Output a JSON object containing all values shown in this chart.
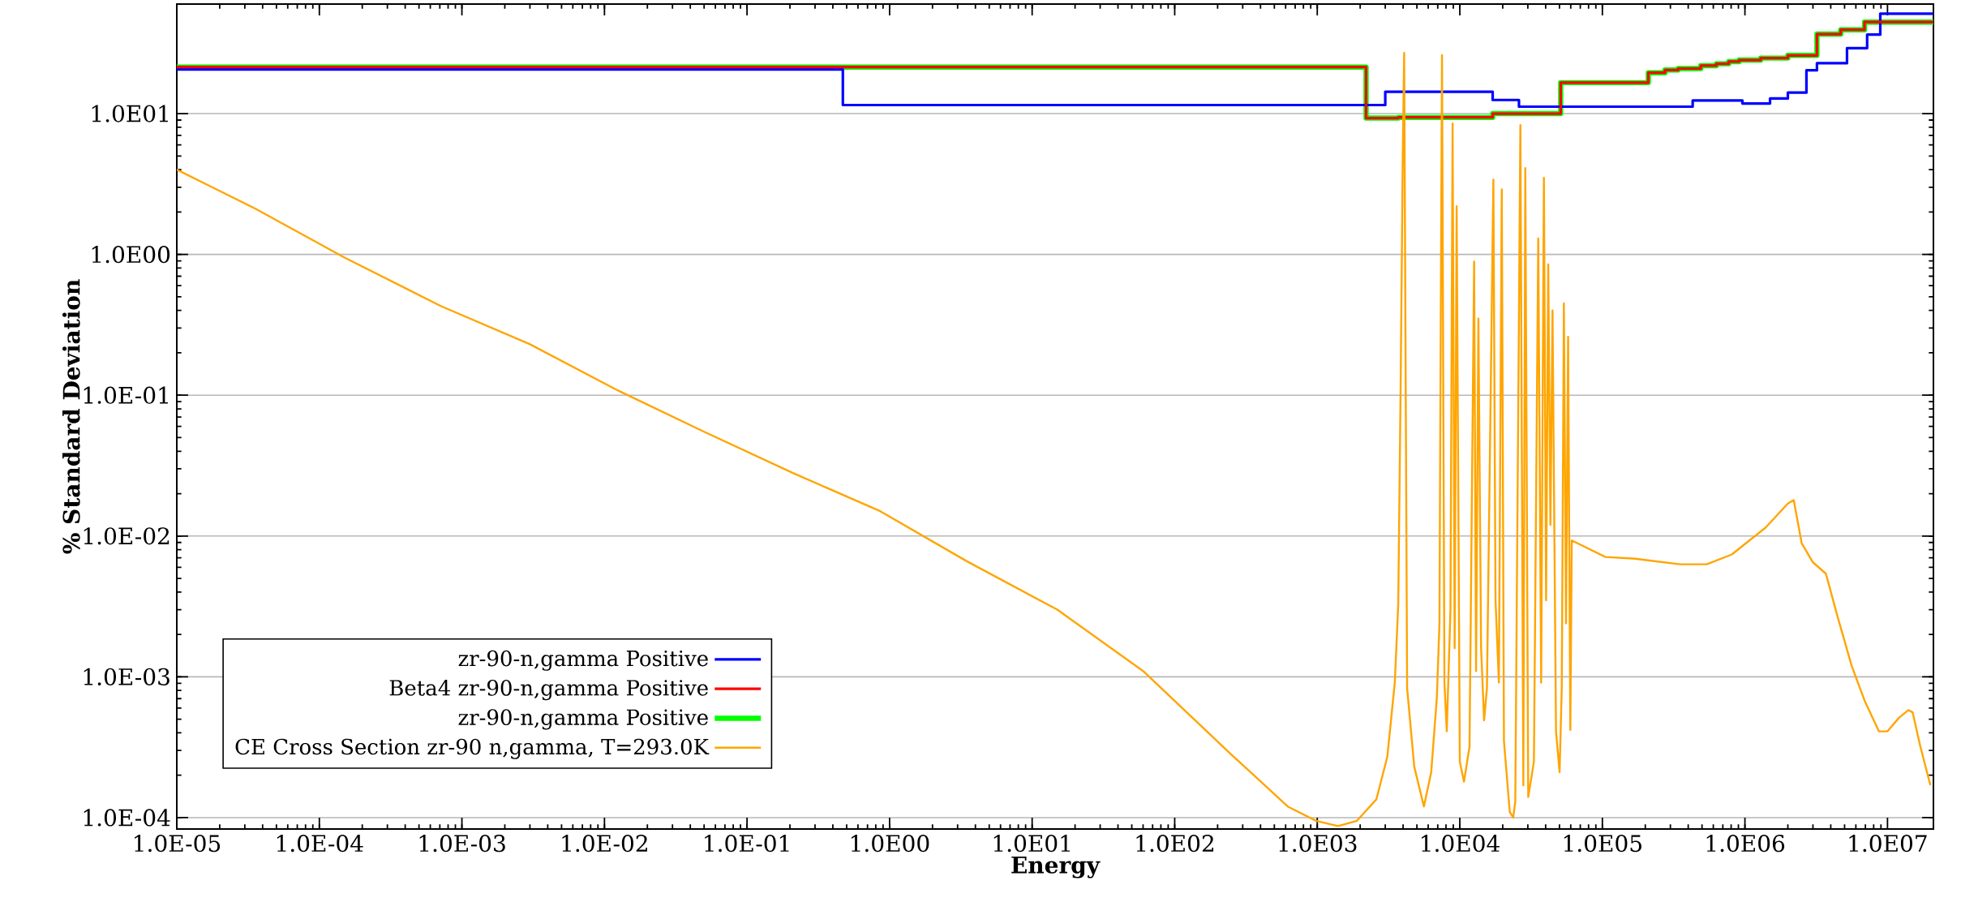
{
  "chart_data": {
    "type": "step",
    "xlabel": "Energy",
    "ylabel": "% Standard Deviation",
    "log": "xy",
    "grid": "y",
    "legend": "bottom left",
    "xlim": [
      1e-05,
      21000000.0
    ],
    "ylim": [
      8.3e-05,
      60
    ],
    "xticks": [
      {
        "value": 1e-05,
        "label": "1.0E-05"
      },
      {
        "value": 0.0001,
        "label": "1.0E-04"
      },
      {
        "value": 0.001,
        "label": "1.0E-03"
      },
      {
        "value": 0.01,
        "label": "1.0E-02"
      },
      {
        "value": 0.1,
        "label": "1.0E-01"
      },
      {
        "value": 1,
        "label": "1.0E00"
      },
      {
        "value": 10,
        "label": "1.0E01"
      },
      {
        "value": 100,
        "label": "1.0E02"
      },
      {
        "value": 1000,
        "label": "1.0E03"
      },
      {
        "value": 10000,
        "label": "1.0E04"
      },
      {
        "value": 100000,
        "label": "1.0E05"
      },
      {
        "value": 1000000,
        "label": "1.0E06"
      },
      {
        "value": 10000000,
        "label": "1.0E07"
      }
    ],
    "yticks": [
      {
        "value": 0.0001,
        "label": "1.0E-04"
      },
      {
        "value": 0.001,
        "label": "1.0E-03"
      },
      {
        "value": 0.01,
        "label": "1.0E-02"
      },
      {
        "value": 0.1,
        "label": "1.0E-01"
      },
      {
        "value": 1,
        "label": "1.0E00"
      },
      {
        "value": 10,
        "label": "1.0E01"
      }
    ],
    "series": [
      {
        "name": "zr-90-n,gamma Positive",
        "color": "#0000ff",
        "x": [
          1e-05,
          0.47,
          3000,
          17000,
          26000,
          430000,
          960000,
          1500000,
          2000000,
          2700000,
          3200000,
          5200000,
          7200000,
          8900000,
          21000000
        ],
        "values": [
          20.6,
          11.5,
          14.3,
          12.5,
          11.2,
          12.4,
          11.8,
          12.8,
          14.1,
          20.3,
          22.8,
          29.2,
          36.4,
          51.3,
          51.3
        ]
      },
      {
        "name": "Beta4 zr-90-n,gamma Positive",
        "color": "#ff0000",
        "x": [
          1e-05,
          2200,
          3700,
          17000,
          51000,
          210000,
          275000,
          340000,
          490000,
          630000,
          770000,
          910000,
          1290000,
          2000000,
          3200000,
          4700000,
          6900000,
          21000000
        ],
        "values": [
          21.4,
          9.3,
          9.4,
          10,
          16.6,
          19.5,
          20.4,
          20.9,
          21.9,
          22.6,
          23.4,
          24,
          24.8,
          25.9,
          36.7,
          39.4,
          44.7,
          44.7
        ]
      },
      {
        "name": "zr-90-n,gamma Positive",
        "color": "#00ff00",
        "x": [
          1e-05,
          2200,
          3700,
          17000,
          51000,
          210000,
          275000,
          340000,
          490000,
          630000,
          770000,
          910000,
          1290000,
          2000000,
          3200000,
          4700000,
          6900000,
          21000000
        ],
        "values": [
          21.4,
          9.3,
          9.4,
          10,
          16.6,
          19.5,
          20.4,
          20.9,
          21.9,
          22.6,
          23.4,
          24,
          24.8,
          25.9,
          36.7,
          39.4,
          44.7,
          44.7
        ]
      },
      {
        "name": "CE Cross Section zr-90 n,gamma, T=293.0K",
        "color": "#ffa500",
        "type": "line",
        "x": [
          1e-05,
          3.6e-05,
          0.00015,
          0.00071,
          0.003,
          0.012,
          0.05,
          0.21,
          0.86,
          3.5,
          15,
          60,
          250,
          380,
          620,
          980,
          1400,
          1900,
          2600,
          3100,
          3500,
          3700,
          3850,
          3980,
          4070,
          4270,
          4790,
          5600,
          6300,
          6900,
          7200,
          7300,
          7500,
          7800,
          8100,
          8600,
          8900,
          9200,
          9500,
          10000,
          10700,
          11700,
          12600,
          13000,
          13500,
          14100,
          14800,
          15500,
          17200,
          17800,
          18800,
          19700,
          20400,
          22400,
          23700,
          24500,
          26600,
          27900,
          28800,
          30200,
          33100,
          35500,
          37200,
          38900,
          40300,
          41700,
          43200,
          44700,
          47300,
          50100,
          51900,
          53700,
          55600,
          57500,
          59600,
          61000,
          105000,
          170000,
          350000,
          540000,
          810000,
          1400000,
          2000000,
          2200000,
          2500000,
          3000000,
          3700000,
          4500000,
          5000000,
          5600000,
          6900000,
          8700000,
          10000000,
          12000000,
          14000000,
          15000000,
          17000000,
          20000000
        ],
        "values": [
          4.0,
          2.1,
          0.95,
          0.43,
          0.23,
          0.11,
          0.055,
          0.028,
          0.015,
          0.0066,
          0.003,
          0.0011,
          0.00028,
          0.00019,
          0.00012,
          9.5e-05,
          8.7e-05,
          9.5e-05,
          0.000135,
          0.00027,
          0.00091,
          0.0033,
          0.13,
          5.0,
          27,
          0.00083,
          0.00023,
          0.00012,
          0.00021,
          0.00071,
          0.0024,
          0.071,
          26,
          0.00091,
          0.00041,
          0.003,
          8.5,
          0.0016,
          2.2,
          0.00025,
          0.00018,
          0.00032,
          0.89,
          0.0011,
          0.35,
          0.0016,
          0.00049,
          0.00083,
          3.4,
          0.0035,
          0.00091,
          2.9,
          0.00035,
          0.00011,
          0.0001,
          0.00013,
          8.3,
          0.00017,
          4.1,
          0.00014,
          0.00025,
          1.3,
          0.00091,
          3.5,
          0.0035,
          0.85,
          0.012,
          0.4,
          0.00041,
          0.00021,
          0.00083,
          0.45,
          0.0024,
          0.26,
          0.00042,
          0.0093,
          0.0071,
          0.0069,
          0.0063,
          0.0063,
          0.0074,
          0.0115,
          0.017,
          0.018,
          0.0089,
          0.0065,
          0.0054,
          0.0026,
          0.0018,
          0.0012,
          0.00068,
          0.00041,
          0.00041,
          0.00051,
          0.00058,
          0.00056,
          0.00032,
          0.00017
        ]
      }
    ]
  }
}
